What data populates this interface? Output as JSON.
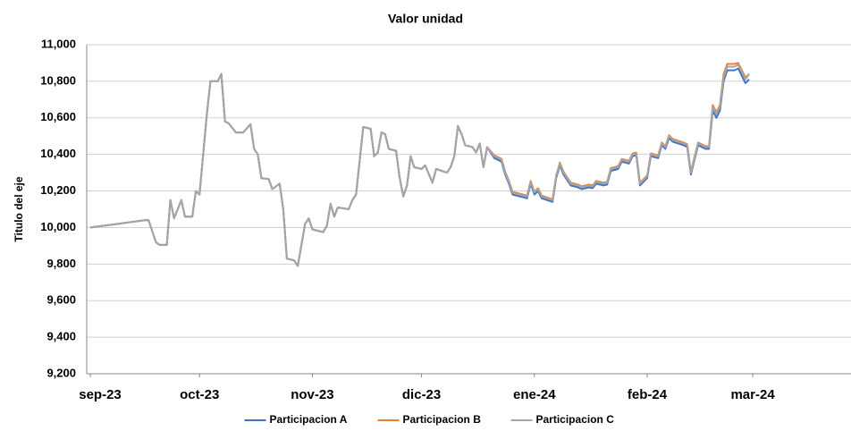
{
  "chart_data": {
    "type": "line",
    "title": "Valor unidad",
    "y_label": "Titulo del eje",
    "x": [
      0,
      15,
      16,
      18,
      19,
      21,
      22,
      23,
      25,
      26,
      28,
      29,
      30,
      31,
      32,
      33,
      35,
      36,
      37,
      38,
      40,
      42,
      44,
      45,
      46,
      47,
      49,
      50,
      52,
      53,
      54,
      56,
      57,
      59,
      60,
      61,
      64,
      65,
      66,
      67,
      68,
      71,
      72,
      73,
      75,
      77,
      78,
      79,
      80,
      81,
      82,
      84,
      85,
      86,
      87,
      88,
      89,
      91,
      92,
      94,
      95,
      98,
      99,
      100,
      101,
      102,
      103,
      105,
      106,
      107,
      108,
      109,
      111,
      113,
      114,
      115,
      116,
      118,
      120,
      121,
      122,
      123,
      124,
      127,
      128,
      129,
      130,
      132,
      134,
      135,
      137,
      138,
      139,
      141,
      142,
      143,
      145,
      146,
      148,
      149,
      150,
      151,
      153,
      154,
      156,
      157,
      158,
      159,
      160,
      163,
      164,
      165,
      166,
      167,
      169,
      170,
      171,
      172,
      173,
      174,
      175,
      177,
      178,
      179,
      180,
      181
    ],
    "series": [
      {
        "name": "Participacion A",
        "color": "#4472c4",
        "values": [
          10000,
          10040,
          10040,
          9920,
          9905,
          9905,
          10150,
          10050,
          10150,
          10060,
          10060,
          10200,
          10180,
          10400,
          10620,
          10800,
          10800,
          10840,
          10580,
          10570,
          10520,
          10520,
          10565,
          10430,
          10400,
          10270,
          10265,
          10210,
          10240,
          10100,
          9830,
          9820,
          9790,
          10020,
          10050,
          9990,
          9975,
          10010,
          10130,
          10060,
          10110,
          10100,
          10150,
          10180,
          10550,
          10540,
          10390,
          10410,
          10520,
          10510,
          10430,
          10420,
          10270,
          10170,
          10230,
          10390,
          10330,
          10320,
          10340,
          10245,
          10320,
          10300,
          10330,
          10390,
          10555,
          10510,
          10450,
          10440,
          10410,
          10460,
          10330,
          10440,
          10380,
          10360,
          10290,
          10240,
          10180,
          10170,
          10160,
          10240,
          10180,
          10200,
          10160,
          10140,
          10270,
          10340,
          10290,
          10230,
          10220,
          10210,
          10220,
          10215,
          10240,
          10230,
          10235,
          10310,
          10320,
          10360,
          10350,
          10390,
          10395,
          10230,
          10270,
          10390,
          10380,
          10450,
          10430,
          10490,
          10470,
          10450,
          10440,
          10290,
          10370,
          10450,
          10430,
          10430,
          10640,
          10600,
          10640,
          10800,
          10860,
          10860,
          10870,
          10830,
          10790,
          10810
        ]
      },
      {
        "name": "Participacion B",
        "color": "#ed7d31",
        "values": [
          10000,
          10040,
          10040,
          9920,
          9905,
          9905,
          10150,
          10050,
          10150,
          10060,
          10060,
          10200,
          10180,
          10400,
          10620,
          10800,
          10800,
          10840,
          10580,
          10570,
          10520,
          10520,
          10565,
          10430,
          10400,
          10270,
          10265,
          10210,
          10240,
          10100,
          9830,
          9820,
          9790,
          10020,
          10050,
          9990,
          9975,
          10010,
          10130,
          10060,
          10110,
          10100,
          10150,
          10180,
          10550,
          10540,
          10390,
          10410,
          10520,
          10510,
          10430,
          10420,
          10270,
          10170,
          10230,
          10390,
          10330,
          10320,
          10340,
          10245,
          10320,
          10300,
          10330,
          10390,
          10555,
          10510,
          10450,
          10440,
          10410,
          10460,
          10330,
          10440,
          10395,
          10375,
          10305,
          10255,
          10195,
          10185,
          10175,
          10255,
          10195,
          10215,
          10175,
          10155,
          10285,
          10355,
          10305,
          10245,
          10235,
          10225,
          10235,
          10230,
          10255,
          10245,
          10250,
          10325,
          10335,
          10375,
          10365,
          10405,
          10410,
          10245,
          10285,
          10405,
          10395,
          10465,
          10445,
          10505,
          10485,
          10465,
          10455,
          10305,
          10385,
          10465,
          10445,
          10445,
          10670,
          10630,
          10670,
          10840,
          10895,
          10895,
          10900,
          10860,
          10820,
          10840
        ]
      },
      {
        "name": "Participacion C",
        "color": "#a5a5a5",
        "values": [
          10000,
          10040,
          10040,
          9920,
          9905,
          9905,
          10150,
          10050,
          10150,
          10060,
          10060,
          10200,
          10180,
          10400,
          10620,
          10800,
          10800,
          10840,
          10580,
          10570,
          10520,
          10520,
          10565,
          10430,
          10400,
          10270,
          10265,
          10210,
          10240,
          10100,
          9830,
          9820,
          9790,
          10020,
          10050,
          9990,
          9975,
          10010,
          10130,
          10060,
          10110,
          10100,
          10150,
          10180,
          10550,
          10540,
          10390,
          10410,
          10520,
          10510,
          10430,
          10420,
          10270,
          10170,
          10230,
          10390,
          10330,
          10320,
          10340,
          10245,
          10320,
          10300,
          10330,
          10390,
          10555,
          10510,
          10450,
          10440,
          10410,
          10460,
          10330,
          10440,
          10390,
          10370,
          10300,
          10250,
          10190,
          10180,
          10170,
          10250,
          10190,
          10210,
          10170,
          10150,
          10280,
          10350,
          10300,
          10240,
          10230,
          10220,
          10230,
          10225,
          10250,
          10240,
          10245,
          10320,
          10330,
          10370,
          10360,
          10400,
          10405,
          10240,
          10280,
          10400,
          10390,
          10460,
          10440,
          10500,
          10480,
          10460,
          10450,
          10300,
          10380,
          10460,
          10440,
          10440,
          10660,
          10620,
          10660,
          10820,
          10880,
          10880,
          10890,
          10850,
          10810,
          10840
        ]
      }
    ],
    "xlim": [
      -1,
      209
    ],
    "xticks": [
      {
        "value": 0,
        "label": "sep-23"
      },
      {
        "value": 30,
        "label": "oct-23"
      },
      {
        "value": 61,
        "label": "nov-23"
      },
      {
        "value": 91,
        "label": "dic-23"
      },
      {
        "value": 122,
        "label": "ene-24"
      },
      {
        "value": 153,
        "label": "feb-24"
      },
      {
        "value": 182,
        "label": "mar-24"
      }
    ],
    "ylim": [
      9200,
      11000
    ],
    "yticks": [
      {
        "value": 9200,
        "label": "9,200"
      },
      {
        "value": 9400,
        "label": "9,400"
      },
      {
        "value": 9600,
        "label": "9,600"
      },
      {
        "value": 9800,
        "label": "9,800"
      },
      {
        "value": 10000,
        "label": "10,000"
      },
      {
        "value": 10200,
        "label": "10,200"
      },
      {
        "value": 10400,
        "label": "10,400"
      },
      {
        "value": 10600,
        "label": "10,600"
      },
      {
        "value": 10800,
        "label": "10,800"
      },
      {
        "value": 11000,
        "label": "11,000"
      }
    ],
    "grid": true,
    "legend": "bottom"
  }
}
